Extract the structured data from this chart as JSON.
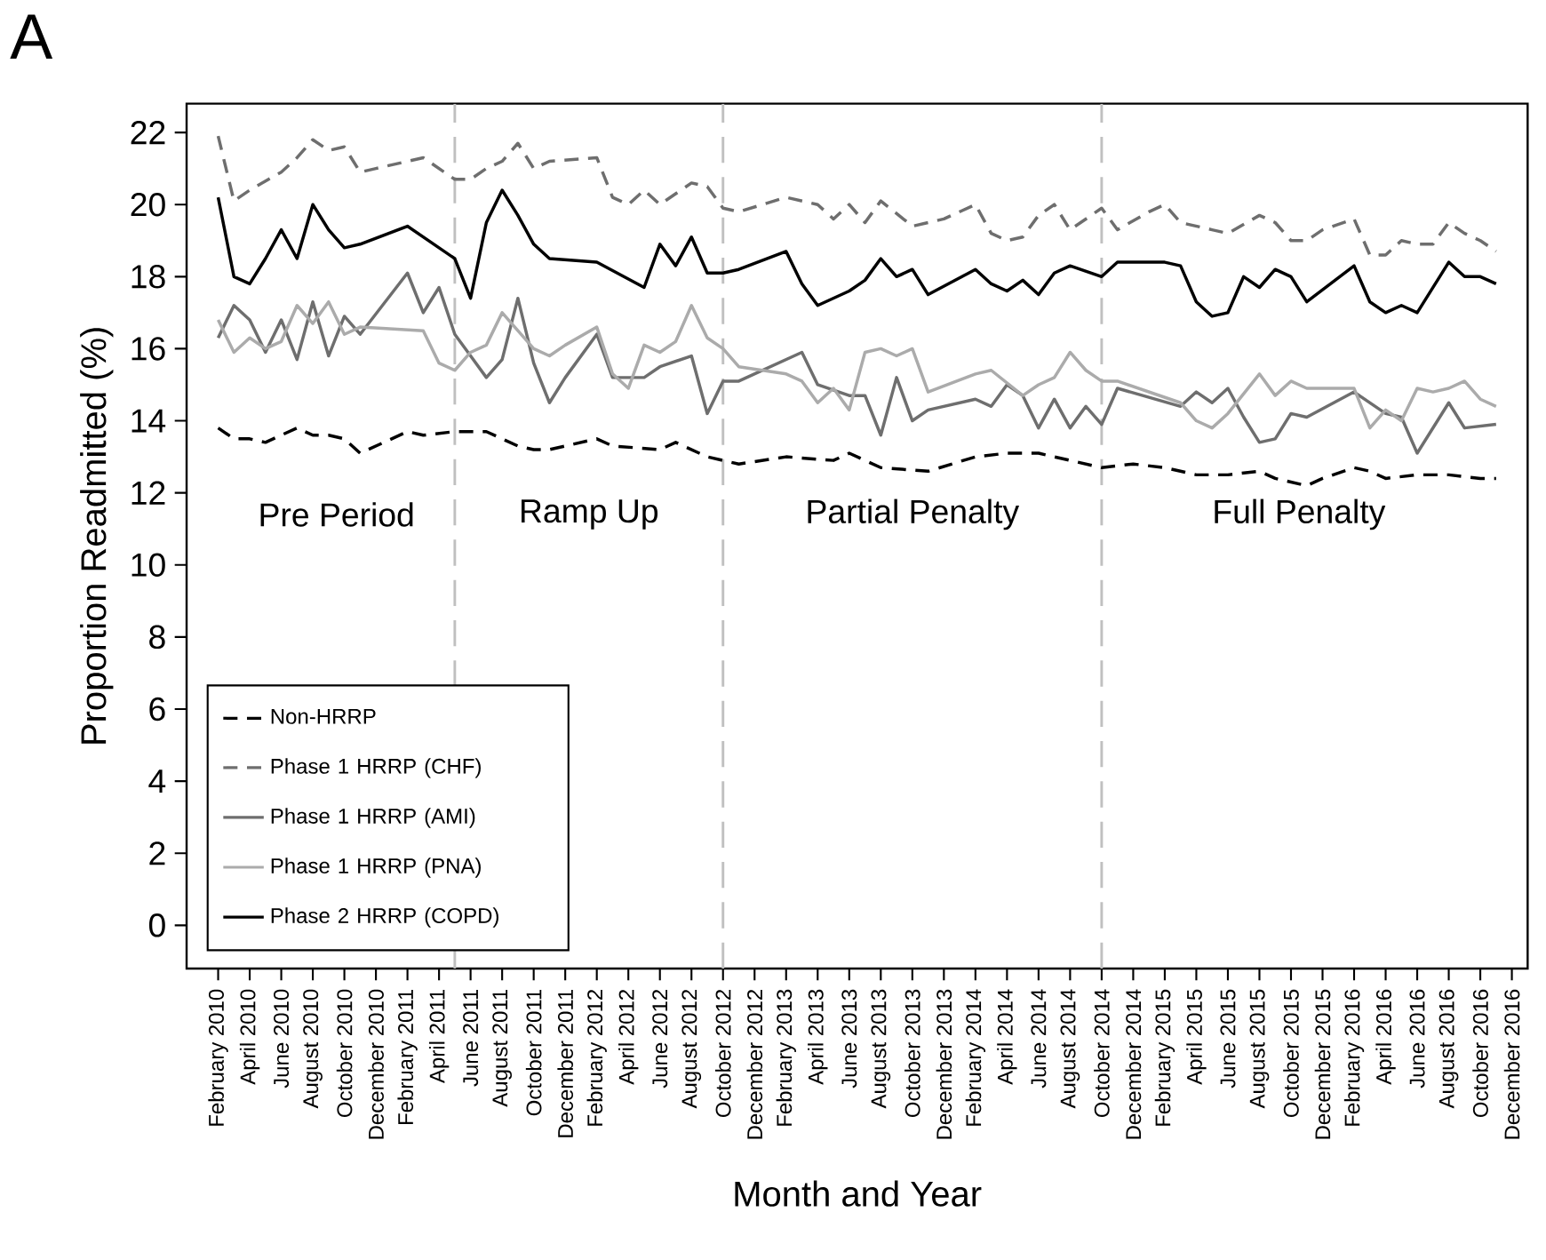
{
  "chart_data": {
    "type": "line",
    "title": "A",
    "xlabel": "Month and Year",
    "ylabel": "Proportion Readmitted (%)",
    "xlim": [
      "2009-12",
      "2017-01"
    ],
    "ylim": [
      -1.2,
      22.8
    ],
    "yticks": [
      0,
      2,
      4,
      6,
      8,
      10,
      12,
      14,
      16,
      18,
      20,
      22
    ],
    "xticks": [
      {
        "value": "2010-02",
        "label": "February 2010"
      },
      {
        "value": "2010-04",
        "label": "April 2010"
      },
      {
        "value": "2010-06",
        "label": "June 2010"
      },
      {
        "value": "2010-08",
        "label": "August 2010"
      },
      {
        "value": "2010-10",
        "label": "October 2010"
      },
      {
        "value": "2010-12",
        "label": "December 2010"
      },
      {
        "value": "2011-02",
        "label": "February 2011"
      },
      {
        "value": "2011-04",
        "label": "April 2011"
      },
      {
        "value": "2011-06",
        "label": "June 2011"
      },
      {
        "value": "2011-08",
        "label": "August 2011"
      },
      {
        "value": "2011-10",
        "label": "October 2011"
      },
      {
        "value": "2011-12",
        "label": "December 2011"
      },
      {
        "value": "2012-02",
        "label": "February 2012"
      },
      {
        "value": "2012-04",
        "label": "April 2012"
      },
      {
        "value": "2012-06",
        "label": "June 2012"
      },
      {
        "value": "2012-08",
        "label": "August 2012"
      },
      {
        "value": "2012-10",
        "label": "October 2012"
      },
      {
        "value": "2012-12",
        "label": "December 2012"
      },
      {
        "value": "2013-02",
        "label": "February 2013"
      },
      {
        "value": "2013-04",
        "label": "April 2013"
      },
      {
        "value": "2013-06",
        "label": "June 2013"
      },
      {
        "value": "2013-08",
        "label": "August 2013"
      },
      {
        "value": "2013-10",
        "label": "October 2013"
      },
      {
        "value": "2013-12",
        "label": "December 2013"
      },
      {
        "value": "2014-02",
        "label": "February 2014"
      },
      {
        "value": "2014-04",
        "label": "April 2014"
      },
      {
        "value": "2014-06",
        "label": "June 2014"
      },
      {
        "value": "2014-08",
        "label": "August 2014"
      },
      {
        "value": "2014-10",
        "label": "October 2014"
      },
      {
        "value": "2014-12",
        "label": "December 2014"
      },
      {
        "value": "2015-02",
        "label": "February 2015"
      },
      {
        "value": "2015-04",
        "label": "April 2015"
      },
      {
        "value": "2015-06",
        "label": "June 2015"
      },
      {
        "value": "2015-08",
        "label": "August 2015"
      },
      {
        "value": "2015-10",
        "label": "October 2015"
      },
      {
        "value": "2015-12",
        "label": "December 2015"
      },
      {
        "value": "2016-02",
        "label": "February 2016"
      },
      {
        "value": "2016-04",
        "label": "April 2016"
      },
      {
        "value": "2016-06",
        "label": "June 2016"
      },
      {
        "value": "2016-08",
        "label": "August 2016"
      },
      {
        "value": "2016-10",
        "label": "October 2016"
      },
      {
        "value": "2016-12",
        "label": "December 2016"
      }
    ],
    "legend": "bottom left",
    "ref_lines": [
      {
        "axis": "x",
        "value": "2011-05",
        "color": "#c0c0c0",
        "line_style": "dashed"
      },
      {
        "axis": "x",
        "value": "2012-10",
        "color": "#c0c0c0",
        "line_style": "dashed"
      },
      {
        "axis": "x",
        "value": "2014-10",
        "color": "#c0c0c0",
        "line_style": "dashed"
      }
    ],
    "annotations": [
      "Pre Period",
      "Ramp Up",
      "Partial Penalty",
      "Full Penalty"
    ],
    "series": [
      {
        "name": "Non-HRRP",
        "color": "#000000",
        "line_style": "dashed",
        "x": [
          "2010-02",
          "2010-03",
          "2010-04",
          "2010-05",
          "2010-06",
          "2010-07",
          "2010-08",
          "2010-09",
          "2010-10",
          "2010-11",
          "2011-01",
          "2011-02",
          "2011-03",
          "2011-05",
          "2011-07",
          "2011-08",
          "2011-09",
          "2011-10",
          "2011-11",
          "2011-12",
          "2012-02",
          "2012-03",
          "2012-06",
          "2012-07",
          "2012-09",
          "2012-11",
          "2013-02",
          "2013-05",
          "2013-06",
          "2013-08",
          "2013-11",
          "2014-02",
          "2014-04",
          "2014-06",
          "2014-08",
          "2014-10",
          "2014-12",
          "2015-02",
          "2015-04",
          "2015-06",
          "2015-08",
          "2015-09",
          "2015-11",
          "2015-12",
          "2016-02",
          "2016-03",
          "2016-04",
          "2016-06",
          "2016-08",
          "2016-10",
          "2016-11"
        ],
        "values": [
          13.8,
          13.5,
          13.5,
          13.4,
          13.6,
          13.8,
          13.6,
          13.6,
          13.5,
          13.1,
          13.5,
          13.7,
          13.6,
          13.7,
          13.7,
          13.5,
          13.3,
          13.2,
          13.2,
          13.3,
          13.5,
          13.3,
          13.2,
          13.4,
          13.0,
          12.8,
          13.0,
          12.9,
          13.1,
          12.7,
          12.6,
          13.0,
          13.1,
          13.1,
          12.9,
          12.7,
          12.8,
          12.7,
          12.5,
          12.5,
          12.6,
          12.4,
          12.2,
          12.4,
          12.7,
          12.6,
          12.4,
          12.5,
          12.5,
          12.4,
          12.4
        ]
      },
      {
        "name": "Phase 1 HRRP (CHF)",
        "color": "#6e6e6e",
        "line_style": "dashed",
        "x": [
          "2010-02",
          "2010-03",
          "2010-04",
          "2010-06",
          "2010-07",
          "2010-08",
          "2010-09",
          "2010-10",
          "2010-11",
          "2010-12",
          "2011-02",
          "2011-03",
          "2011-05",
          "2011-06",
          "2011-07",
          "2011-08",
          "2011-09",
          "2011-10",
          "2011-11",
          "2012-02",
          "2012-03",
          "2012-04",
          "2012-05",
          "2012-06",
          "2012-07",
          "2012-08",
          "2012-09",
          "2012-10",
          "2012-11",
          "2013-02",
          "2013-04",
          "2013-05",
          "2013-06",
          "2013-07",
          "2013-08",
          "2013-10",
          "2013-12",
          "2014-02",
          "2014-03",
          "2014-04",
          "2014-05",
          "2014-06",
          "2014-07",
          "2014-08",
          "2014-10",
          "2014-11",
          "2015-01",
          "2015-02",
          "2015-03",
          "2015-05",
          "2015-06",
          "2015-08",
          "2015-09",
          "2015-10",
          "2015-11",
          "2015-12",
          "2016-02",
          "2016-03",
          "2016-04",
          "2016-05",
          "2016-06",
          "2016-07",
          "2016-08",
          "2016-09",
          "2016-10",
          "2016-11"
        ],
        "values": [
          21.9,
          20.1,
          20.4,
          20.9,
          21.3,
          21.8,
          21.5,
          21.6,
          20.9,
          21.0,
          21.2,
          21.3,
          20.7,
          20.7,
          21.0,
          21.2,
          21.7,
          21.0,
          21.2,
          21.3,
          20.2,
          20.0,
          20.4,
          20.0,
          20.3,
          20.6,
          20.5,
          19.9,
          19.8,
          20.2,
          20.0,
          19.6,
          20.0,
          19.5,
          20.1,
          19.4,
          19.6,
          20.0,
          19.2,
          19.0,
          19.1,
          19.7,
          20.0,
          19.3,
          19.9,
          19.3,
          19.8,
          20.0,
          19.5,
          19.3,
          19.2,
          19.7,
          19.5,
          19.0,
          19.0,
          19.3,
          19.6,
          18.6,
          18.6,
          19.0,
          18.9,
          18.9,
          19.5,
          19.2,
          19.0,
          18.7
        ]
      },
      {
        "name": "Phase 1 HRRP (AMI)",
        "color": "#6e6e6e",
        "line_style": "solid",
        "x": [
          "2010-02",
          "2010-03",
          "2010-04",
          "2010-05",
          "2010-06",
          "2010-07",
          "2010-08",
          "2010-09",
          "2010-10",
          "2010-11",
          "2011-02",
          "2011-03",
          "2011-04",
          "2011-05",
          "2011-06",
          "2011-07",
          "2011-08",
          "2011-09",
          "2011-10",
          "2011-11",
          "2011-12",
          "2012-02",
          "2012-03",
          "2012-05",
          "2012-06",
          "2012-08",
          "2012-09",
          "2012-10",
          "2012-11",
          "2013-03",
          "2013-04",
          "2013-06",
          "2013-07",
          "2013-08",
          "2013-09",
          "2013-10",
          "2013-11",
          "2014-02",
          "2014-03",
          "2014-04",
          "2014-05",
          "2014-06",
          "2014-07",
          "2014-08",
          "2014-09",
          "2014-10",
          "2014-11",
          "2015-03",
          "2015-04",
          "2015-05",
          "2015-06",
          "2015-07",
          "2015-08",
          "2015-09",
          "2015-10",
          "2015-11",
          "2016-02",
          "2016-04",
          "2016-05",
          "2016-06",
          "2016-08",
          "2016-09",
          "2016-11"
        ],
        "values": [
          16.3,
          17.2,
          16.8,
          15.9,
          16.8,
          15.7,
          17.3,
          15.8,
          16.9,
          16.4,
          18.1,
          17.0,
          17.7,
          16.4,
          15.8,
          15.2,
          15.7,
          17.4,
          15.6,
          14.5,
          15.2,
          16.4,
          15.2,
          15.2,
          15.5,
          15.8,
          14.2,
          15.1,
          15.1,
          15.9,
          15.0,
          14.7,
          14.7,
          13.6,
          15.2,
          14.0,
          14.3,
          14.6,
          14.4,
          15.0,
          14.7,
          13.8,
          14.6,
          13.8,
          14.4,
          13.9,
          14.9,
          14.4,
          14.8,
          14.5,
          14.9,
          14.1,
          13.4,
          13.5,
          14.2,
          14.1,
          14.8,
          14.2,
          14.1,
          13.1,
          14.5,
          13.8,
          13.9
        ]
      },
      {
        "name": "Phase 1 HRRP (PNA)",
        "color": "#ababab",
        "line_style": "solid",
        "x": [
          "2010-02",
          "2010-03",
          "2010-04",
          "2010-05",
          "2010-06",
          "2010-07",
          "2010-08",
          "2010-09",
          "2010-10",
          "2010-11",
          "2011-03",
          "2011-04",
          "2011-05",
          "2011-06",
          "2011-07",
          "2011-08",
          "2011-09",
          "2011-10",
          "2011-11",
          "2011-12",
          "2012-02",
          "2012-03",
          "2012-04",
          "2012-05",
          "2012-06",
          "2012-07",
          "2012-08",
          "2012-09",
          "2012-10",
          "2012-11",
          "2013-02",
          "2013-03",
          "2013-04",
          "2013-05",
          "2013-06",
          "2013-07",
          "2013-08",
          "2013-09",
          "2013-10",
          "2013-11",
          "2014-02",
          "2014-03",
          "2014-05",
          "2014-06",
          "2014-07",
          "2014-08",
          "2014-09",
          "2014-10",
          "2014-11",
          "2015-03",
          "2015-04",
          "2015-05",
          "2015-06",
          "2015-08",
          "2015-09",
          "2015-10",
          "2015-11",
          "2016-02",
          "2016-03",
          "2016-04",
          "2016-05",
          "2016-06",
          "2016-07",
          "2016-08",
          "2016-09",
          "2016-10",
          "2016-11"
        ],
        "values": [
          16.8,
          15.9,
          16.3,
          16.0,
          16.2,
          17.2,
          16.7,
          17.3,
          16.4,
          16.6,
          16.5,
          15.6,
          15.4,
          15.9,
          16.1,
          17.0,
          16.5,
          16.0,
          15.8,
          16.1,
          16.6,
          15.3,
          14.9,
          16.1,
          15.9,
          16.2,
          17.2,
          16.3,
          16.0,
          15.5,
          15.3,
          15.1,
          14.5,
          14.9,
          14.3,
          15.9,
          16.0,
          15.8,
          16.0,
          14.8,
          15.3,
          15.4,
          14.7,
          15.0,
          15.2,
          15.9,
          15.4,
          15.1,
          15.1,
          14.5,
          14.0,
          13.8,
          14.2,
          15.3,
          14.7,
          15.1,
          14.9,
          14.9,
          13.8,
          14.3,
          14.0,
          14.9,
          14.8,
          14.9,
          15.1,
          14.6,
          14.4
        ]
      },
      {
        "name": "Phase 2 HRRP (COPD)",
        "color": "#000000",
        "line_style": "solid",
        "x": [
          "2010-02",
          "2010-03",
          "2010-04",
          "2010-05",
          "2010-06",
          "2010-07",
          "2010-08",
          "2010-09",
          "2010-10",
          "2010-11",
          "2011-02",
          "2011-04",
          "2011-05",
          "2011-06",
          "2011-07",
          "2011-08",
          "2011-09",
          "2011-10",
          "2011-11",
          "2012-02",
          "2012-05",
          "2012-06",
          "2012-07",
          "2012-08",
          "2012-09",
          "2012-10",
          "2012-11",
          "2013-02",
          "2013-03",
          "2013-04",
          "2013-06",
          "2013-07",
          "2013-08",
          "2013-09",
          "2013-10",
          "2013-11",
          "2014-02",
          "2014-03",
          "2014-04",
          "2014-05",
          "2014-06",
          "2014-07",
          "2014-08",
          "2014-10",
          "2014-11",
          "2015-02",
          "2015-03",
          "2015-04",
          "2015-05",
          "2015-06",
          "2015-07",
          "2015-08",
          "2015-09",
          "2015-10",
          "2015-11",
          "2016-02",
          "2016-03",
          "2016-04",
          "2016-05",
          "2016-06",
          "2016-08",
          "2016-09",
          "2016-10",
          "2016-11"
        ],
        "values": [
          20.2,
          18.0,
          17.8,
          18.5,
          19.3,
          18.5,
          20.0,
          19.3,
          18.8,
          18.9,
          19.4,
          18.8,
          18.5,
          17.4,
          19.5,
          20.4,
          19.7,
          18.9,
          18.5,
          18.4,
          17.7,
          18.9,
          18.3,
          19.1,
          18.1,
          18.1,
          18.2,
          18.7,
          17.8,
          17.2,
          17.6,
          17.9,
          18.5,
          18.0,
          18.2,
          17.5,
          18.2,
          17.8,
          17.6,
          17.9,
          17.5,
          18.1,
          18.3,
          18.0,
          18.4,
          18.4,
          18.3,
          17.3,
          16.9,
          17.0,
          18.0,
          17.7,
          18.2,
          18.0,
          17.3,
          18.3,
          17.3,
          17.0,
          17.2,
          17.0,
          18.4,
          18.0,
          18.0,
          17.8
        ]
      }
    ]
  }
}
